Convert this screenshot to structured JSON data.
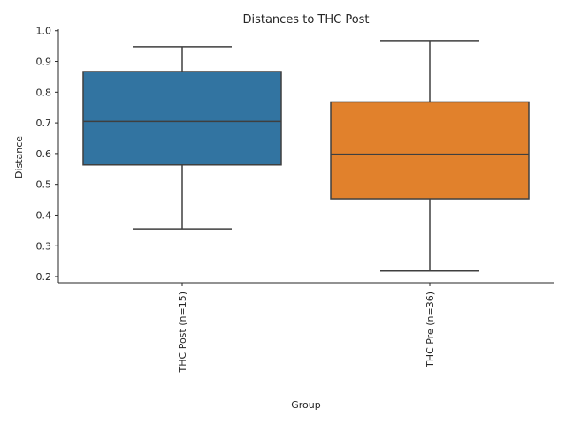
{
  "chart_data": {
    "type": "box",
    "title": "Distances to THC Post",
    "xlabel": "Group",
    "ylabel": "Distance",
    "ylim": [
      0.18,
      1.005
    ],
    "yticks": [
      "0.2",
      "0.3",
      "0.4",
      "0.5",
      "0.6",
      "0.7",
      "0.8",
      "0.9",
      "1.0"
    ],
    "grid": false,
    "series": [
      {
        "name": "THC Post (n=15)",
        "color": "#3274a1",
        "whisker_low": 0.355,
        "q1": 0.563,
        "median": 0.705,
        "q3": 0.867,
        "whisker_high": 0.948
      },
      {
        "name": "THC Pre (n=36)",
        "color": "#e1812c",
        "whisker_low": 0.218,
        "q1": 0.453,
        "median": 0.598,
        "q3": 0.768,
        "whisker_high": 0.968
      }
    ]
  }
}
